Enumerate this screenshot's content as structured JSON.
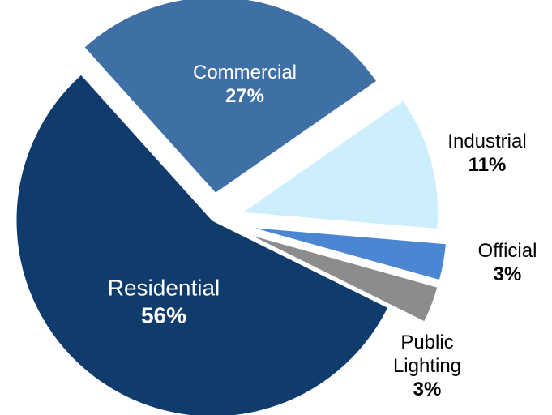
{
  "chart_data": {
    "type": "pie",
    "categories": [
      "Commercial",
      "Industrial",
      "Official",
      "Public Lighting",
      "Residential"
    ],
    "values": [
      27,
      11,
      3,
      3,
      56
    ],
    "value_labels": [
      "27%",
      "11%",
      "3%",
      "3%",
      "56%"
    ],
    "colors": [
      "#3f70a5",
      "#cdeefc",
      "#4a86d2",
      "#8c8c8c",
      "#0f3b6d"
    ]
  }
}
